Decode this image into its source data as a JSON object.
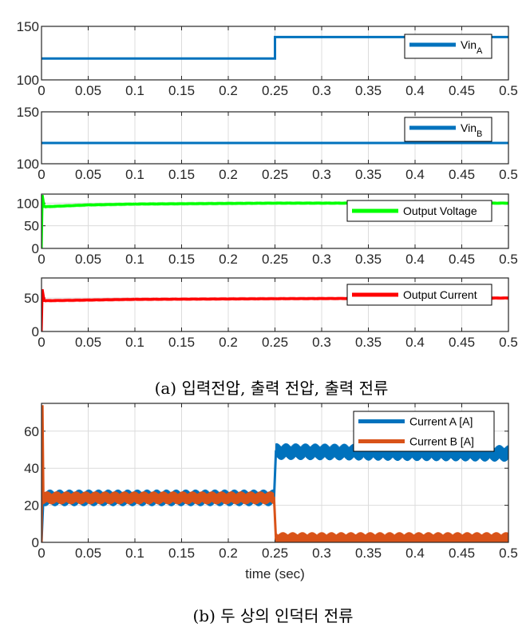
{
  "captions": {
    "a": "(a) 입력전압, 출력 전압, 출력 전류",
    "b": "(b) 두 상의 인덕터 전류"
  },
  "chart_data": [
    {
      "type": "line",
      "xlim": [
        0,
        0.5
      ],
      "ylim": [
        100,
        150
      ],
      "xticks": [
        "0",
        "0.05",
        "0.1",
        "0.15",
        "0.2",
        "0.25",
        "0.3",
        "0.35",
        "0.4",
        "0.45",
        "0.5"
      ],
      "yticks": [
        "100",
        "150"
      ],
      "grid": true,
      "legend_position": "top-right",
      "series": [
        {
          "name": "Vin",
          "subscript": "A",
          "color": "#0072BD",
          "points": [
            [
              0,
              120
            ],
            [
              0.25,
              120
            ],
            [
              0.25,
              140
            ],
            [
              0.5,
              140
            ]
          ],
          "ripple": 0
        }
      ]
    },
    {
      "type": "line",
      "xlim": [
        0,
        0.5
      ],
      "ylim": [
        100,
        150
      ],
      "xticks": [
        "0",
        "0.05",
        "0.1",
        "0.15",
        "0.2",
        "0.25",
        "0.3",
        "0.35",
        "0.4",
        "0.45",
        "0.5"
      ],
      "yticks": [
        "100",
        "150"
      ],
      "grid": true,
      "legend_position": "top-right",
      "series": [
        {
          "name": "Vin",
          "subscript": "B",
          "color": "#0072BD",
          "points": [
            [
              0,
              120
            ],
            [
              0.5,
              120
            ]
          ],
          "ripple": 0
        }
      ]
    },
    {
      "type": "line",
      "xlim": [
        0,
        0.5
      ],
      "ylim": [
        0,
        120
      ],
      "xticks": [
        "0",
        "0.05",
        "0.1",
        "0.15",
        "0.2",
        "0.25",
        "0.3",
        "0.35",
        "0.4",
        "0.45",
        "0.5"
      ],
      "yticks": [
        "0",
        "50",
        "100"
      ],
      "grid": true,
      "legend_position": "top-right",
      "series": [
        {
          "name": "Output Voltage",
          "color": "#00FF00",
          "points": [
            [
              0,
              0
            ],
            [
              0.001,
              118
            ],
            [
              0.003,
              92
            ],
            [
              0.05,
              96
            ],
            [
              0.1,
              98
            ],
            [
              0.25,
              100
            ],
            [
              0.5,
              100
            ]
          ],
          "ripple": 1.5
        }
      ]
    },
    {
      "type": "line",
      "xlim": [
        0,
        0.5
      ],
      "ylim": [
        0,
        80
      ],
      "xticks": [
        "0",
        "0.05",
        "0.1",
        "0.15",
        "0.2",
        "0.25",
        "0.3",
        "0.35",
        "0.4",
        "0.45",
        "0.5"
      ],
      "yticks": [
        "0",
        "50"
      ],
      "grid": true,
      "legend_position": "top-right",
      "series": [
        {
          "name": "Output Current",
          "color": "#FF0000",
          "points": [
            [
              0,
              0
            ],
            [
              0.001,
              63
            ],
            [
              0.003,
              46
            ],
            [
              0.1,
              48
            ],
            [
              0.25,
              49
            ],
            [
              0.5,
              50
            ]
          ],
          "ripple": 1
        }
      ]
    },
    {
      "type": "line",
      "xlim": [
        0,
        0.5
      ],
      "ylim": [
        0,
        75
      ],
      "xlabel": "time (sec)",
      "xticks": [
        "0",
        "0.05",
        "0.1",
        "0.15",
        "0.2",
        "0.25",
        "0.3",
        "0.35",
        "0.4",
        "0.45",
        "0.5"
      ],
      "yticks": [
        "0",
        "20",
        "40",
        "60"
      ],
      "grid": true,
      "legend_position": "top-right",
      "series": [
        {
          "name": "Current A [A]",
          "color": "#0072BD",
          "points": [
            [
              0,
              0
            ],
            [
              0.002,
              24
            ],
            [
              0.249,
              24
            ],
            [
              0.251,
              49
            ],
            [
              0.5,
              48
            ]
          ],
          "ripple": 4.5
        },
        {
          "name": "Current B [A]",
          "color": "#D95319",
          "points": [
            [
              0,
              0
            ],
            [
              0.001,
              74
            ],
            [
              0.002,
              24
            ],
            [
              0.249,
              24
            ],
            [
              0.251,
              2
            ],
            [
              0.5,
              2
            ]
          ],
          "ripple": 3.5
        }
      ]
    }
  ]
}
